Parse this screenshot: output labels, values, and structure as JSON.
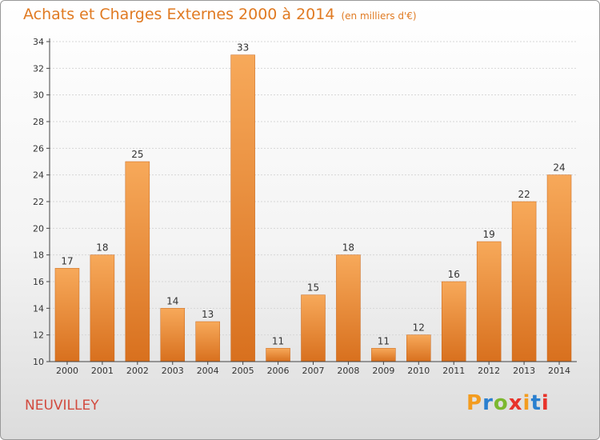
{
  "header": {
    "title": "Achats et Charges Externes 2000 à 2014",
    "subtitle": "(en milliers d'€)"
  },
  "footer": {
    "town": "NEUVILLEY",
    "brand_letters": [
      "P",
      "r",
      "o",
      "x",
      "i",
      "t",
      "i"
    ],
    "brand_colors": [
      "#f39c1f",
      "#2a7fcf",
      "#7cb82f",
      "#e8332a",
      "#f39c1f",
      "#2a7fcf",
      "#e8332a"
    ]
  },
  "colors": {
    "bar_top": "#f7a95a",
    "bar_bottom": "#d8701e",
    "title": "#e07a22",
    "town": "#d24a3e"
  },
  "chart_data": {
    "type": "bar",
    "title": "Achats et Charges Externes 2000 à 2014",
    "subtitle": "(en milliers d'€)",
    "categories": [
      "2000",
      "2001",
      "2002",
      "2003",
      "2004",
      "2005",
      "2006",
      "2007",
      "2008",
      "2009",
      "2010",
      "2011",
      "2012",
      "2013",
      "2014"
    ],
    "values": [
      17,
      18,
      25,
      14,
      13,
      33,
      11,
      15,
      18,
      11,
      12,
      16,
      19,
      22,
      24
    ],
    "ylim": [
      10,
      34
    ],
    "yticks": [
      10,
      12,
      14,
      16,
      18,
      20,
      22,
      24,
      26,
      28,
      30,
      32,
      34
    ],
    "grid": true,
    "legend": "none"
  }
}
